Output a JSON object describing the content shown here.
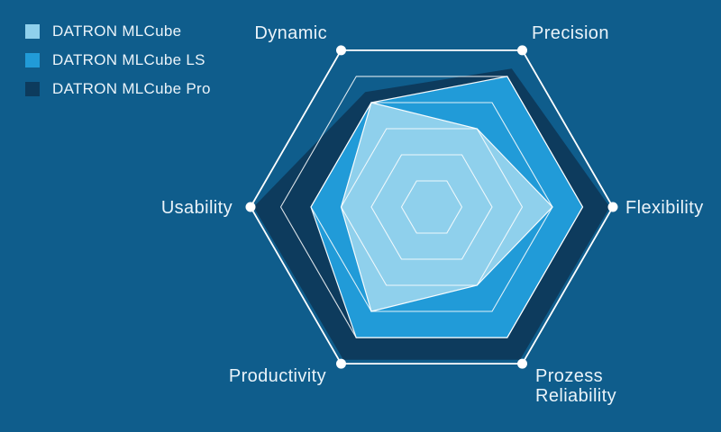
{
  "colors": {
    "background": "#0F5D8C",
    "grid_line": "#FFFFFF",
    "label_text": "#EAF3F9"
  },
  "legend": {
    "position": "top-left",
    "items": [
      {
        "label": "DATRON MLCube",
        "color": "#8FD0EC"
      },
      {
        "label": "DATRON MLCube LS",
        "color": "#219BD8"
      },
      {
        "label": "DATRON MLCube Pro",
        "color": "#0D3B5D"
      }
    ]
  },
  "chart_data": {
    "type": "radar",
    "shape": "hexagon",
    "axes": [
      "Dynamic",
      "Precision",
      "Flexibility",
      "Prozess Reliability",
      "Productivity",
      "Usability"
    ],
    "axis_angles_deg": [
      120,
      60,
      0,
      300,
      240,
      180
    ],
    "scale": {
      "min": 0,
      "max": 6,
      "rings": 6
    },
    "grid": true,
    "legend_position": "top-left",
    "series": [
      {
        "name": "DATRON MLCube",
        "color": "#8FD0EC",
        "outline": true,
        "values": [
          4,
          3,
          4,
          3,
          4,
          3
        ]
      },
      {
        "name": "DATRON MLCube LS",
        "color": "#219BD8",
        "outline": true,
        "values": [
          4,
          5,
          5,
          5,
          5,
          4
        ]
      },
      {
        "name": "DATRON MLCube Pro",
        "color": "#0D3B5D",
        "outline": false,
        "values": [
          4.4,
          5.3,
          5.9,
          5.85,
          5.85,
          5.9
        ]
      }
    ]
  }
}
